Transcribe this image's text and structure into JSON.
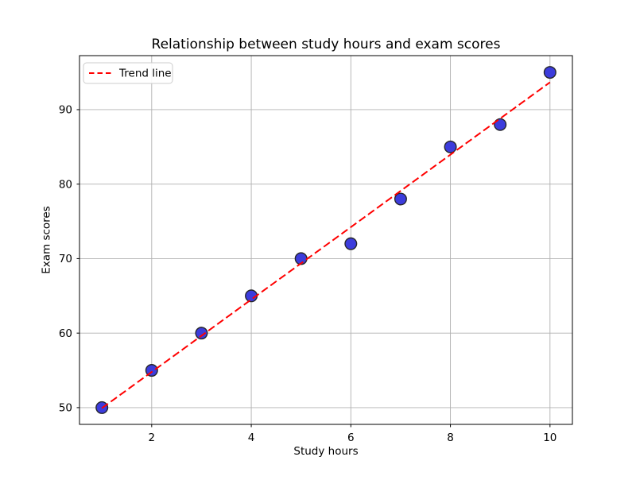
{
  "chart_data": {
    "type": "scatter",
    "title": "Relationship between study hours and exam scores",
    "xlabel": "Study hours",
    "ylabel": "Exam scores",
    "x": [
      1,
      2,
      3,
      4,
      5,
      6,
      7,
      8,
      9,
      10
    ],
    "y": [
      50,
      55,
      60,
      65,
      70,
      72,
      78,
      85,
      88,
      95
    ],
    "xlim": [
      0.55,
      10.45
    ],
    "ylim": [
      47.75,
      97.25
    ],
    "xticks": [
      2,
      4,
      6,
      8,
      10
    ],
    "yticks": [
      50,
      60,
      70,
      80,
      90
    ],
    "grid": true,
    "legend": {
      "position": "upper left",
      "entries": [
        {
          "label": "Trend line",
          "line_style": "dashed",
          "color": "#ff0000"
        }
      ]
    },
    "trend": {
      "slope": 4.8606,
      "intercept": 45.0667,
      "x_start": 1,
      "x_end": 10
    },
    "colors": {
      "point_fill": "#3c3cdc",
      "point_edge": "#26262b",
      "trend_line": "#ff0000",
      "grid": "#b0b0b0",
      "spine": "#000000",
      "legend_border": "#cccccc",
      "background": "#ffffff"
    }
  }
}
